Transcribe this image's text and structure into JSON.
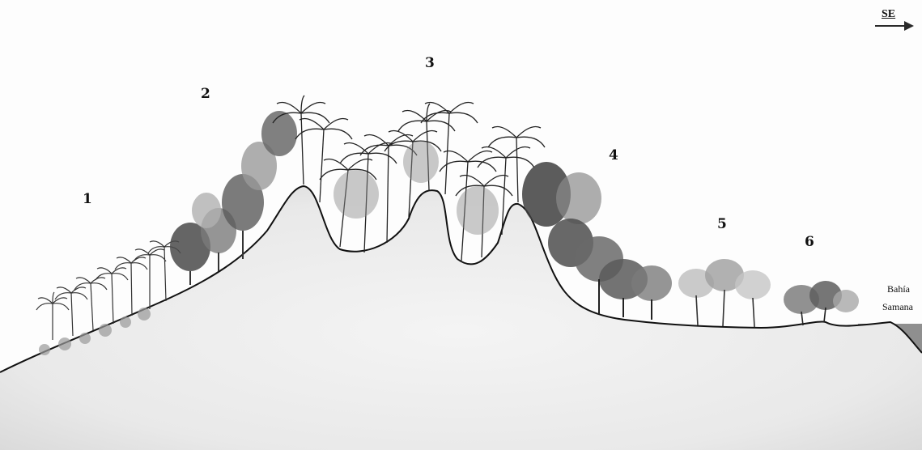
{
  "compass": {
    "label": "SE",
    "icon": "arrow-right-icon"
  },
  "zones": [
    {
      "id": "1",
      "label": "1"
    },
    {
      "id": "2",
      "label": "2"
    },
    {
      "id": "3",
      "label": "3"
    },
    {
      "id": "4",
      "label": "4"
    },
    {
      "id": "5",
      "label": "5"
    },
    {
      "id": "6",
      "label": "6"
    }
  ],
  "bay": {
    "line1": "Bahía",
    "line2": "Samana"
  },
  "colors": {
    "background": "#fdfdfd",
    "ground": "#ececec",
    "outline": "#111111",
    "vegetation_dark": "#3a3a3a",
    "vegetation_mid": "#6e6e6e",
    "vegetation_light": "#b5b5b5",
    "water": "#8f8f8f"
  }
}
